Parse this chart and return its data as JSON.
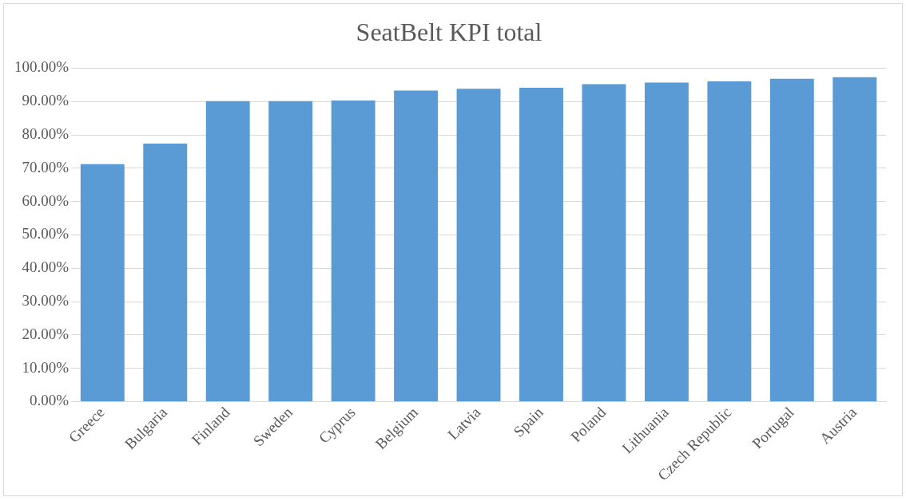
{
  "chart_data": {
    "type": "bar",
    "title": "SeatBelt KPI total",
    "categories": [
      "Greece",
      "Bulgaria",
      "Finland",
      "Sweden",
      "Cyprus",
      "Belgium",
      "Latvia",
      "Spain",
      "Poland",
      "Lithuania",
      "Czech Republic",
      "Portugal",
      "Austria"
    ],
    "values": [
      71.2,
      77.4,
      90.1,
      90.1,
      90.3,
      93.3,
      93.8,
      94.1,
      95.2,
      95.7,
      96.0,
      96.8,
      97.3
    ],
    "color": "#5b9bd5",
    "ylim": [
      0,
      100
    ],
    "yticks": [
      {
        "value": 0,
        "label": "0.00%"
      },
      {
        "value": 10,
        "label": "10.00%"
      },
      {
        "value": 20,
        "label": "20.00%"
      },
      {
        "value": 30,
        "label": "30.00%"
      },
      {
        "value": 40,
        "label": "40.00%"
      },
      {
        "value": 50,
        "label": "50.00%"
      },
      {
        "value": 60,
        "label": "60.00%"
      },
      {
        "value": 70,
        "label": "70.00%"
      },
      {
        "value": 80,
        "label": "80.00%"
      },
      {
        "value": 90,
        "label": "90.00%"
      },
      {
        "value": 100,
        "label": "100.00%"
      }
    ],
    "grid": "y",
    "legend": false
  }
}
